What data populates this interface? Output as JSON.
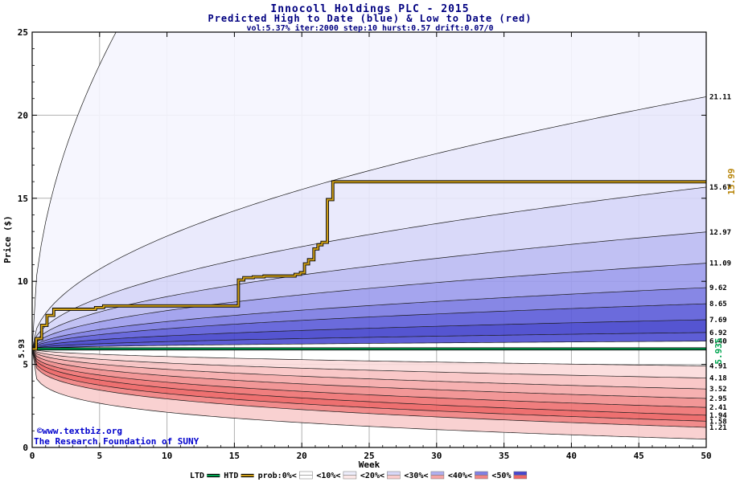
{
  "header": {
    "title": "Innocoll Holdings PLC - 2015",
    "subtitle": "Predicted High to Date (blue) &  Low to Date (red)",
    "params": "vol:5.37% iter:2000 step:10 hurst:0.57 drift:0.07/0",
    "title_color": "#000080"
  },
  "watermark": {
    "line1": "©www.textbiz.org",
    "line2": "The Research Foundation of SUNY",
    "color": "#0000cd"
  },
  "chart_data": {
    "type": "area",
    "title": "Innocoll Holdings PLC - 2015",
    "subtitle": "Predicted High to Date (blue) &  Low to Date (red)",
    "xlabel": "Week",
    "ylabel": "Price ($)",
    "xlim": [
      0,
      50
    ],
    "ylim": [
      0,
      25
    ],
    "x_ticks": [
      0,
      5,
      10,
      15,
      20,
      25,
      30,
      35,
      40,
      45,
      50
    ],
    "y_ticks": [
      0,
      5,
      10,
      15,
      20,
      25
    ],
    "start_price": 5.93,
    "start_price_label": "5.93",
    "htd_end": 15.99,
    "htd_end_label": "15.99",
    "ltd_value": 5.935,
    "ltd_end_label": "5.935",
    "upper_boundaries": [
      {
        "end": 6.4,
        "p": 0.5,
        "label": "6.40"
      },
      {
        "end": 6.92,
        "p": 0.5,
        "label": "6.92"
      },
      {
        "end": 7.69,
        "p": 0.5,
        "label": "7.69"
      },
      {
        "end": 8.65,
        "p": 0.5,
        "label": "8.65"
      },
      {
        "end": 9.62,
        "p": 0.5,
        "label": "9.62"
      },
      {
        "end": 11.09,
        "p": 0.5,
        "label": "11.09"
      },
      {
        "end": 12.97,
        "p": 0.5,
        "label": "12.97"
      },
      {
        "end": 15.67,
        "p": 0.5,
        "label": "15.67"
      },
      {
        "end": 21.11,
        "p": 0.5,
        "label": "21.11"
      },
      {
        "end": 60.0,
        "p": 0.5,
        "label": ""
      }
    ],
    "lower_boundaries": [
      {
        "end": 4.91,
        "p": 0.5,
        "label": "4.91"
      },
      {
        "end": 4.18,
        "p": 0.45,
        "label": "4.18"
      },
      {
        "end": 3.52,
        "p": 0.42,
        "label": "3.52"
      },
      {
        "end": 2.95,
        "p": 0.38,
        "label": "2.95"
      },
      {
        "end": 2.41,
        "p": 0.35,
        "label": "2.41"
      },
      {
        "end": 1.94,
        "p": 0.33,
        "label": "1.94"
      },
      {
        "end": 1.58,
        "p": 0.3,
        "label": "1.58"
      },
      {
        "end": 1.21,
        "p": 0.28,
        "label": "1.21"
      },
      {
        "end": 0.5,
        "p": 0.22,
        "label": ""
      }
    ],
    "upper_band_colors": [
      "#4d4dd2",
      "#4343cc",
      "#5b5bd8",
      "#7a7ae2",
      "#9b9bec",
      "#babaf2",
      "#d5d5f8",
      "#e8e8fc",
      "#f5f5fe"
    ],
    "lower_band_colors": [
      "#fbdada",
      "#f8c2c2",
      "#f5a8a8",
      "#f18c8c",
      "#ee7070",
      "#ec6060",
      "#f07e7e",
      "#f8cccc"
    ],
    "htd_steps": [
      [
        0,
        5.93
      ],
      [
        0.3,
        6.55
      ],
      [
        0.7,
        7.35
      ],
      [
        1.1,
        7.95
      ],
      [
        1.6,
        8.32
      ],
      [
        4.7,
        8.42
      ],
      [
        5.3,
        8.52
      ],
      [
        15.3,
        10.08
      ],
      [
        15.7,
        10.22
      ],
      [
        16.4,
        10.27
      ],
      [
        17.2,
        10.32
      ],
      [
        19.5,
        10.42
      ],
      [
        19.9,
        10.52
      ],
      [
        20.2,
        11.05
      ],
      [
        20.5,
        11.3
      ],
      [
        20.9,
        11.95
      ],
      [
        21.2,
        12.2
      ],
      [
        21.5,
        12.35
      ],
      [
        21.9,
        14.92
      ],
      [
        22.3,
        15.99
      ],
      [
        50,
        15.99
      ]
    ],
    "colors": {
      "htd": "#d0a017",
      "htd_label": "#b8860b",
      "ltd": "#00a550",
      "grid": "#b0b0b0",
      "boundary_line": "#1a1a1a",
      "axis": "#000000"
    }
  },
  "legend": {
    "ltd_label": "LTD",
    "htd_label": "HTD",
    "prob_items": [
      {
        "label": "prob:0%<",
        "blue": "#ffffff",
        "red": "#ffffff"
      },
      {
        "label": "<10%<",
        "blue": "#eeeefc",
        "red": "#fde8e8"
      },
      {
        "label": "<20%<",
        "blue": "#d8d8f8",
        "red": "#fbcccc"
      },
      {
        "label": "<30%<",
        "blue": "#b0b0f0",
        "red": "#f6a4a4"
      },
      {
        "label": "<40%<",
        "blue": "#8080e4",
        "red": "#f28484"
      },
      {
        "label": "<50%",
        "blue": "#4646ce",
        "red": "#ee6666"
      }
    ]
  }
}
